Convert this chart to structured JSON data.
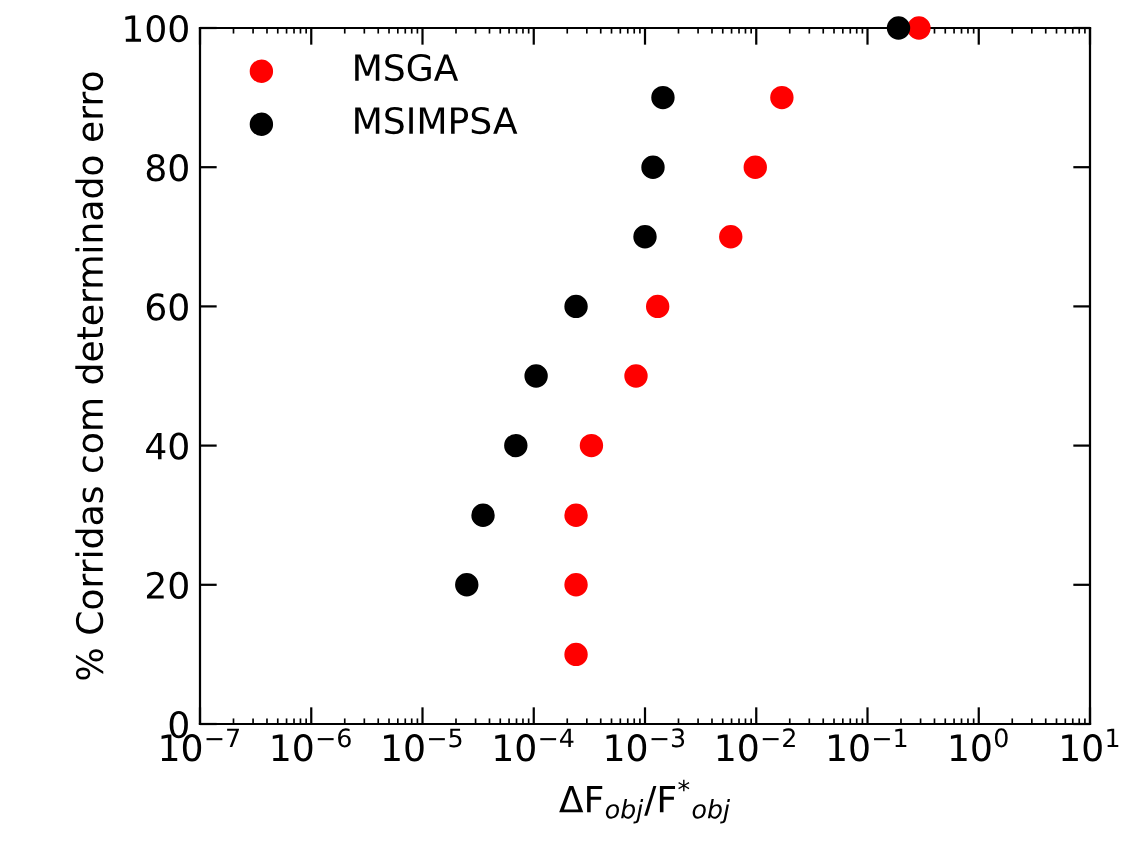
{
  "chart_data": {
    "type": "scatter",
    "xlabel": "ΔF$_{obj}$/F$^{*}$$_{obj}$",
    "ylabel": "% Corridas com determinado erro",
    "log": "x",
    "xlim": [
      1e-07,
      10
    ],
    "ylim": [
      0,
      100
    ],
    "xticks": [
      {
        "value": 1e-07,
        "label": "10$^{−7}$"
      },
      {
        "value": 1e-06,
        "label": "10$^{−6}$"
      },
      {
        "value": 1e-05,
        "label": "10$^{−5}$"
      },
      {
        "value": 0.0001,
        "label": "10$^{−4}$"
      },
      {
        "value": 0.001,
        "label": "10$^{−3}$"
      },
      {
        "value": 0.01,
        "label": "10$^{−2}$"
      },
      {
        "value": 0.1,
        "label": "10$^{−1}$"
      },
      {
        "value": 1,
        "label": "10$^{0}$"
      },
      {
        "value": 10,
        "label": "10$^{1}$"
      }
    ],
    "yticks": [
      0,
      20,
      40,
      60,
      80,
      100
    ],
    "grid": false,
    "legend": "top left",
    "marker": "circle",
    "series": [
      {
        "name": "MSGA",
        "color": "#ff0000",
        "x": [
          0.00024,
          0.00024,
          0.00024,
          0.00033,
          0.00083,
          0.0013,
          0.0059,
          0.0098,
          0.017,
          0.29
        ],
        "values": [
          10,
          20,
          30,
          40,
          50,
          60,
          70,
          80,
          90,
          100
        ]
      },
      {
        "name": "MSIMPSA",
        "color": "#000000",
        "x": [
          2.5e-05,
          3.5e-05,
          6.9e-05,
          0.000105,
          0.00024,
          0.001,
          0.00118,
          0.00145,
          0.19
        ],
        "values": [
          20,
          30,
          40,
          50,
          60,
          70,
          80,
          90,
          100
        ]
      }
    ]
  }
}
